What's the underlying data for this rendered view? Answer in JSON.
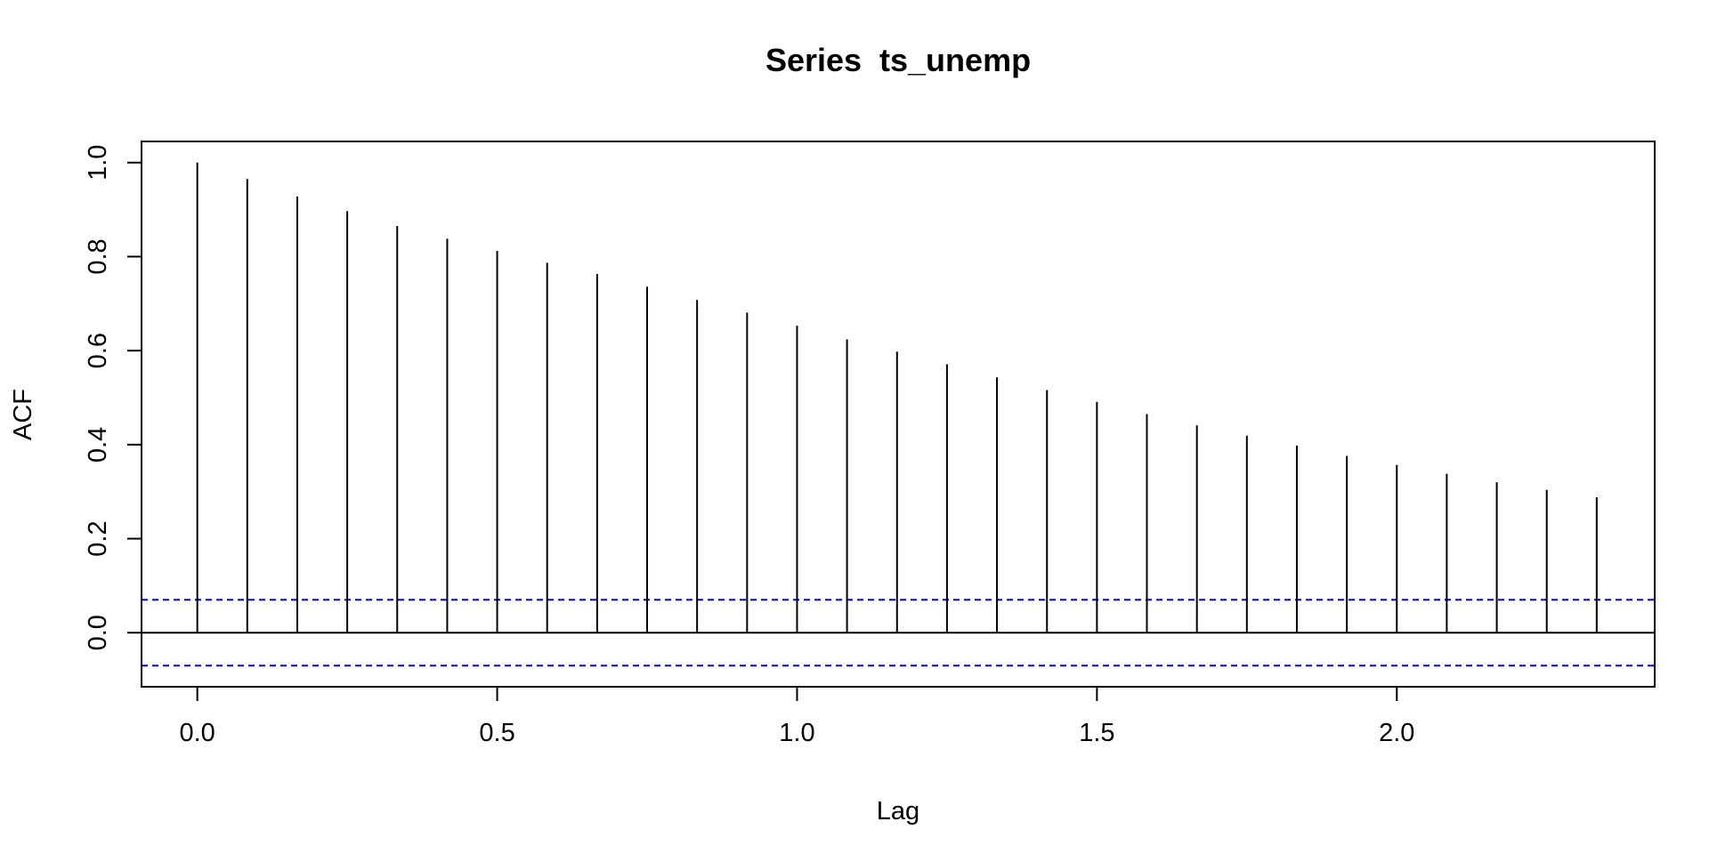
{
  "chart_data": {
    "type": "bar",
    "title": "Series  ts_unemp",
    "xlabel": "Lag",
    "ylabel": "ACF",
    "x": [
      0.0,
      0.0833,
      0.1667,
      0.25,
      0.3333,
      0.4167,
      0.5,
      0.5833,
      0.6667,
      0.75,
      0.8333,
      0.9167,
      1.0,
      1.0833,
      1.1667,
      1.25,
      1.3333,
      1.4167,
      1.5,
      1.5833,
      1.6667,
      1.75,
      1.8333,
      1.9167,
      2.0,
      2.0833,
      2.1667,
      2.25,
      2.3333
    ],
    "values": [
      1.0,
      0.965,
      0.928,
      0.897,
      0.865,
      0.838,
      0.812,
      0.787,
      0.763,
      0.736,
      0.708,
      0.681,
      0.653,
      0.624,
      0.598,
      0.571,
      0.543,
      0.516,
      0.491,
      0.465,
      0.441,
      0.419,
      0.398,
      0.376,
      0.357,
      0.338,
      0.32,
      0.304,
      0.288
    ],
    "confidence_bounds": [
      0.07,
      -0.07
    ],
    "xlim": [
      -0.093,
      2.43
    ],
    "ylim": [
      -0.115,
      1.045
    ],
    "x_ticks": [
      0.0,
      0.5,
      1.0,
      1.5,
      2.0
    ],
    "x_tick_labels": [
      "0.0",
      "0.5",
      "1.0",
      "1.5",
      "2.0"
    ],
    "y_ticks": [
      0.0,
      0.2,
      0.4,
      0.6,
      0.8,
      1.0
    ],
    "y_tick_labels": [
      "0.0",
      "0.2",
      "0.4",
      "0.6",
      "0.8",
      "1.0"
    ],
    "grid": false,
    "colors": {
      "bars": "#000000",
      "zero_line": "#000000",
      "confidence": "#0000ff",
      "frame": "#000000"
    }
  }
}
